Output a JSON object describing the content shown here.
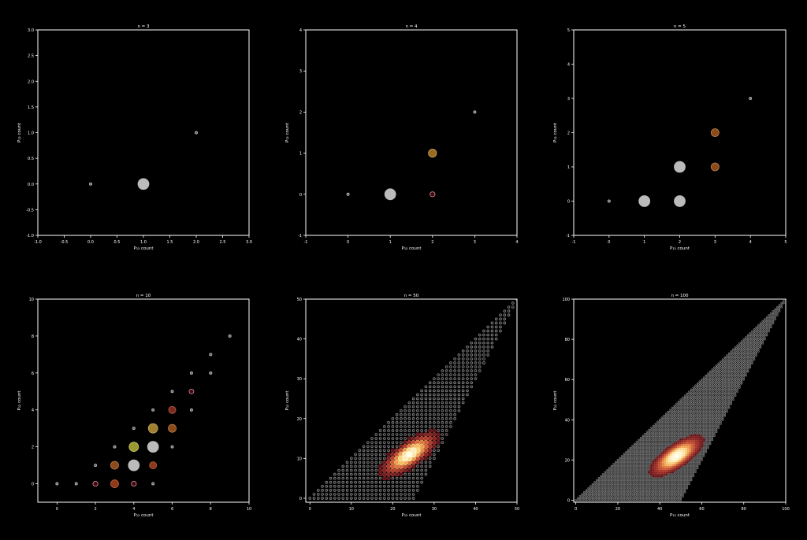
{
  "figure": {
    "background": "#000000",
    "axis_color": "#ffffff"
  },
  "chart_data": [
    {
      "type": "scatter",
      "title": "n = 3",
      "xlabel": "P₁₃ count",
      "ylabel": "P₁₂ count",
      "xlim": [
        -1,
        3
      ],
      "ylim": [
        -1,
        3
      ],
      "xticks": [
        -1.0,
        -0.5,
        0.0,
        0.5,
        1.0,
        1.5,
        2.0,
        2.5,
        3.0
      ],
      "yticks": [
        -1.0,
        -0.5,
        0.0,
        0.5,
        1.0,
        1.5,
        2.0,
        2.5,
        3.0
      ],
      "tick_decimals": 1,
      "points": [
        {
          "x": 0,
          "y": 0,
          "r": 1.6,
          "fill": "#666666",
          "stroke": "#bbbbbb"
        },
        {
          "x": 1,
          "y": 0,
          "r": 7,
          "fill": "#bbbbbb",
          "stroke": "#bbbbbb"
        },
        {
          "x": 2,
          "y": 1,
          "r": 1.6,
          "fill": "#666666",
          "stroke": "#bbbbbb"
        }
      ]
    },
    {
      "type": "scatter",
      "title": "n = 4",
      "xlabel": "P₁₃ count",
      "ylabel": "P₁₂ count",
      "xlim": [
        -1,
        4
      ],
      "ylim": [
        -1,
        4
      ],
      "xticks": [
        -1,
        0,
        1,
        2,
        3,
        4
      ],
      "yticks": [
        -1,
        0,
        1,
        2,
        3,
        4
      ],
      "tick_decimals": 0,
      "points": [
        {
          "x": 0,
          "y": 0,
          "r": 1.6,
          "fill": "#666666",
          "stroke": "#bbbbbb"
        },
        {
          "x": 1,
          "y": 0,
          "r": 7,
          "fill": "#bbbbbb",
          "stroke": "#bbbbbb"
        },
        {
          "x": 2,
          "y": 0,
          "r": 3.2,
          "fill": "#3a0d12",
          "stroke": "#e48a9a"
        },
        {
          "x": 2,
          "y": 1,
          "r": 5.2,
          "fill": "#9a6a22",
          "stroke": "#c8a060"
        },
        {
          "x": 3,
          "y": 2,
          "r": 1.6,
          "fill": "#666666",
          "stroke": "#bbbbbb"
        }
      ]
    },
    {
      "type": "scatter",
      "title": "n = 5",
      "xlabel": "P₁₃ count",
      "ylabel": "P₁₂ count",
      "xlim": [
        -1,
        5
      ],
      "ylim": [
        -1,
        5
      ],
      "xticks": [
        -1,
        0,
        1,
        2,
        3,
        4,
        5
      ],
      "yticks": [
        -1,
        0,
        1,
        2,
        3,
        4,
        5
      ],
      "tick_decimals": 0,
      "points": [
        {
          "x": 0,
          "y": 0,
          "r": 1.6,
          "fill": "#666666",
          "stroke": "#bbbbbb"
        },
        {
          "x": 1,
          "y": 0,
          "r": 7,
          "fill": "#bbbbbb",
          "stroke": "#bbbbbb"
        },
        {
          "x": 2,
          "y": 0,
          "r": 7,
          "fill": "#bbbbbb",
          "stroke": "#bbbbbb"
        },
        {
          "x": 2,
          "y": 1,
          "r": 7,
          "fill": "#bbbbbb",
          "stroke": "#bbbbbb"
        },
        {
          "x": 3,
          "y": 1,
          "r": 5,
          "fill": "#8a4a1a",
          "stroke": "#c08050"
        },
        {
          "x": 3,
          "y": 2,
          "r": 5,
          "fill": "#8a4a1a",
          "stroke": "#c08050"
        },
        {
          "x": 4,
          "y": 3,
          "r": 1.6,
          "fill": "#666666",
          "stroke": "#bbbbbb"
        }
      ]
    },
    {
      "type": "scatter",
      "title": "n = 10",
      "xlabel": "P₁₃ count",
      "ylabel": "P₁₂ count",
      "xlim": [
        -1,
        10
      ],
      "ylim": [
        -1,
        10
      ],
      "xticks": [
        0,
        2,
        4,
        6,
        8,
        10
      ],
      "yticks": [
        0,
        2,
        4,
        6,
        8,
        10
      ],
      "tick_decimals": 0,
      "points": [
        {
          "x": 0,
          "y": 0,
          "r": 1.6,
          "fill": "#666666",
          "stroke": "#bbbbbb"
        },
        {
          "x": 1,
          "y": 0,
          "r": 1.6,
          "fill": "#666666",
          "stroke": "#bbbbbb"
        },
        {
          "x": 2,
          "y": 0,
          "r": 3.2,
          "fill": "#3a0d12",
          "stroke": "#e48a9a"
        },
        {
          "x": 2,
          "y": 1,
          "r": 1.6,
          "fill": "#666666",
          "stroke": "#bbbbbb"
        },
        {
          "x": 3,
          "y": 0,
          "r": 5,
          "fill": "#8a3a1a",
          "stroke": "#c06040"
        },
        {
          "x": 3,
          "y": 1,
          "r": 5,
          "fill": "#8a4a1a",
          "stroke": "#c08050"
        },
        {
          "x": 3,
          "y": 2,
          "r": 1.6,
          "fill": "#666666",
          "stroke": "#bbbbbb"
        },
        {
          "x": 4,
          "y": 0,
          "r": 3.2,
          "fill": "#3a0d12",
          "stroke": "#e48a9a"
        },
        {
          "x": 4,
          "y": 1,
          "r": 7,
          "fill": "#bbbbbb",
          "stroke": "#bbbbbb"
        },
        {
          "x": 4,
          "y": 2,
          "r": 6,
          "fill": "#9a9a30",
          "stroke": "#c8c870"
        },
        {
          "x": 4,
          "y": 3,
          "r": 1.6,
          "fill": "#666666",
          "stroke": "#bbbbbb"
        },
        {
          "x": 5,
          "y": 0,
          "r": 1.6,
          "fill": "#666666",
          "stroke": "#bbbbbb"
        },
        {
          "x": 5,
          "y": 1,
          "r": 4.5,
          "fill": "#8a3a1a",
          "stroke": "#c06040"
        },
        {
          "x": 5,
          "y": 2,
          "r": 7,
          "fill": "#bbbbbb",
          "stroke": "#bbbbbb"
        },
        {
          "x": 5,
          "y": 3,
          "r": 6,
          "fill": "#a08030",
          "stroke": "#c8a860"
        },
        {
          "x": 5,
          "y": 4,
          "r": 1.6,
          "fill": "#666666",
          "stroke": "#bbbbbb"
        },
        {
          "x": 6,
          "y": 2,
          "r": 1.6,
          "fill": "#666666",
          "stroke": "#bbbbbb"
        },
        {
          "x": 6,
          "y": 3,
          "r": 5,
          "fill": "#8a4a1a",
          "stroke": "#c08050"
        },
        {
          "x": 6,
          "y": 4,
          "r": 4.5,
          "fill": "#7a2a1a",
          "stroke": "#c06050"
        },
        {
          "x": 6,
          "y": 5,
          "r": 1.6,
          "fill": "#666666",
          "stroke": "#bbbbbb"
        },
        {
          "x": 7,
          "y": 4,
          "r": 1.6,
          "fill": "#666666",
          "stroke": "#bbbbbb"
        },
        {
          "x": 7,
          "y": 5,
          "r": 3,
          "fill": "#3a0d12",
          "stroke": "#e48a9a"
        },
        {
          "x": 7,
          "y": 6,
          "r": 1.6,
          "fill": "#666666",
          "stroke": "#bbbbbb"
        },
        {
          "x": 8,
          "y": 6,
          "r": 1.6,
          "fill": "#666666",
          "stroke": "#bbbbbb"
        },
        {
          "x": 8,
          "y": 7,
          "r": 1.6,
          "fill": "#666666",
          "stroke": "#bbbbbb"
        },
        {
          "x": 9,
          "y": 8,
          "r": 1.6,
          "fill": "#666666",
          "stroke": "#bbbbbb"
        }
      ]
    },
    {
      "type": "scatter",
      "title": "n = 50",
      "xlabel": "P₁₃ count",
      "ylabel": "P₁₂ count",
      "xlim": [
        -1,
        50
      ],
      "ylim": [
        -1,
        50
      ],
      "xticks": [
        0,
        10,
        20,
        30,
        40,
        50
      ],
      "yticks": [
        0,
        10,
        20,
        30,
        40,
        50
      ],
      "tick_decimals": 0,
      "grid": {
        "n": 50,
        "peak": [
          24,
          11
        ],
        "sd_x": 3.2,
        "sd_y": 2.6,
        "rho": 0.75,
        "bg_fill": "#222222",
        "bg_stroke": "#9a9a9a",
        "bg_radius": 1.5,
        "hot_colors": [
          "#3a0a1a",
          "#8a2a2a",
          "#c8503a",
          "#e8904a",
          "#f8d070",
          "#fffbe6"
        ],
        "hot_radius": 3
      }
    },
    {
      "type": "scatter",
      "title": "n = 100",
      "xlabel": "P₁₃ count",
      "ylabel": "P₁₂ count",
      "xlim": [
        -1,
        100
      ],
      "ylim": [
        -1,
        100
      ],
      "xticks": [
        0,
        20,
        40,
        60,
        80,
        100
      ],
      "yticks": [
        0,
        20,
        40,
        60,
        80,
        100
      ],
      "tick_decimals": 0,
      "grid": {
        "n": 100,
        "peak": [
          48,
          22
        ],
        "sd_x": 5.5,
        "sd_y": 4.4,
        "rho": 0.75,
        "bg_fill": "#1a1a1a",
        "bg_stroke": "#8a8a8a",
        "bg_radius": 1,
        "hot_colors": [
          "#3a0a1a",
          "#8a2a2a",
          "#c8503a",
          "#e8904a",
          "#f8d070",
          "#fffbe6"
        ],
        "hot_radius": 2.2
      }
    }
  ]
}
